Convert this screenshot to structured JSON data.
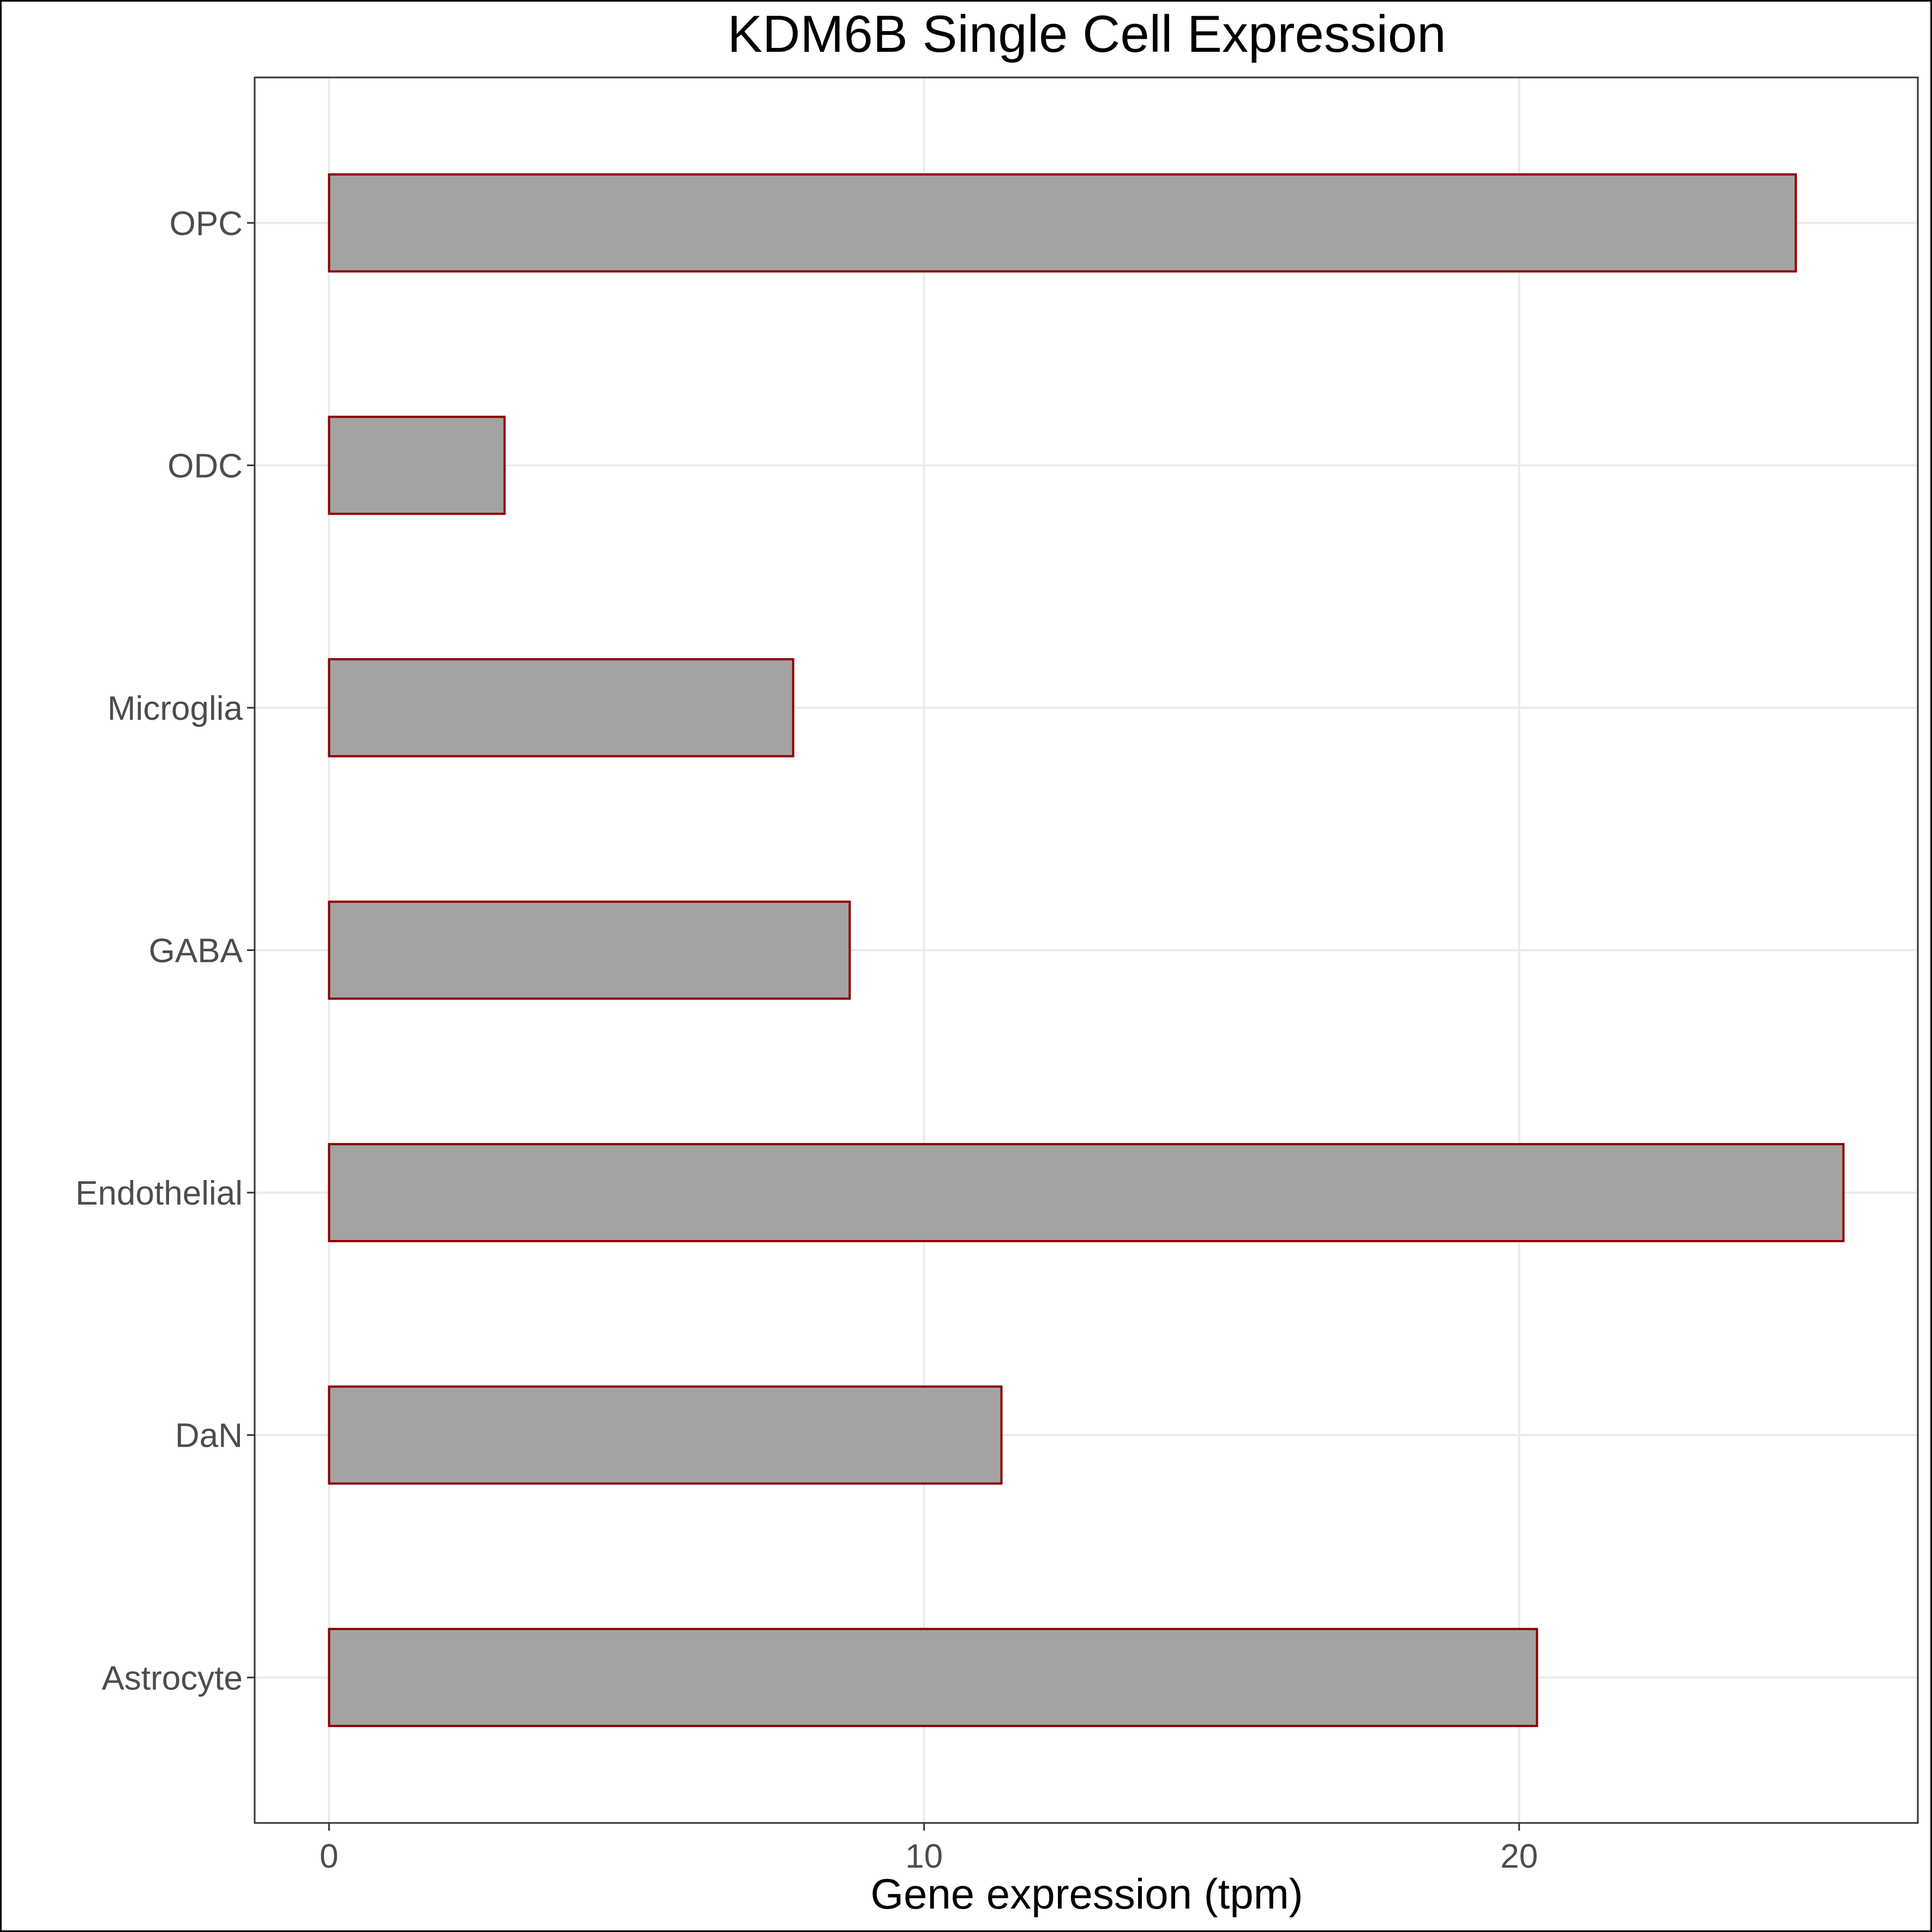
{
  "chart_data": {
    "type": "bar",
    "orientation": "horizontal",
    "title": "KDM6B Single Cell Expression",
    "xlabel": "Gene expression (tpm)",
    "ylabel": "",
    "categories": [
      "Astrocyte",
      "DaN",
      "Endothelial",
      "GABA",
      "Microglia",
      "ODC",
      "OPC"
    ],
    "values": [
      20.3,
      11.3,
      25.45,
      8.75,
      7.8,
      2.95,
      24.65
    ],
    "xlim": [
      -1.25,
      26.7
    ],
    "xticks": [
      0,
      10,
      20
    ],
    "xtick_labels": [
      "0",
      "10",
      "20"
    ],
    "grid": true,
    "legend": "none",
    "colors": {
      "bar_fill": "#a3a3a3",
      "bar_stroke": "#8b0000",
      "grid": "#ebebeb",
      "panel_border": "#333333"
    }
  }
}
